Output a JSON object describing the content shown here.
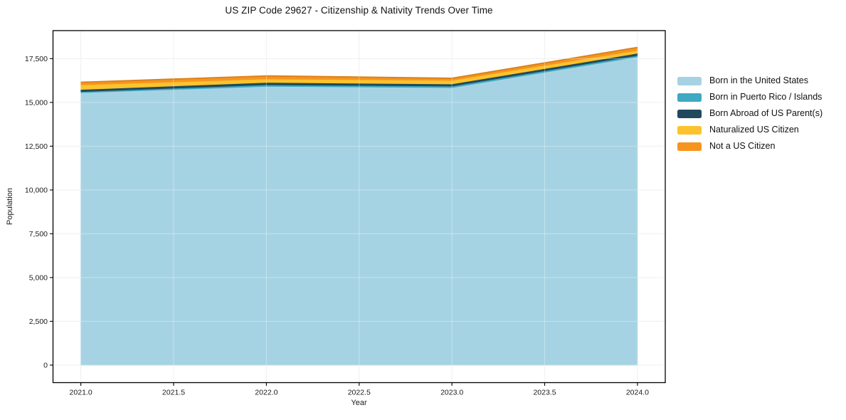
{
  "chart_data": {
    "type": "area",
    "stacked": true,
    "title": "US ZIP Code 29627 - Citizenship & Nativity Trends Over Time",
    "xlabel": "Year",
    "ylabel": "Population",
    "x": [
      2021,
      2022,
      2023,
      2024
    ],
    "series": [
      {
        "name": "Born in the United States",
        "color": "#a6d3e3",
        "values": [
          15560,
          15920,
          15850,
          17600
        ]
      },
      {
        "name": "Born in Puerto Rico / Islands",
        "color": "#3fa8c2",
        "values": [
          60,
          90,
          85,
          85
        ]
      },
      {
        "name": "Born Abroad of US Parent(s)",
        "color": "#20495c",
        "values": [
          120,
          135,
          120,
          125
        ]
      },
      {
        "name": "Naturalized US Citizen",
        "color": "#fcc32d",
        "values": [
          265,
          195,
          205,
          165
        ]
      },
      {
        "name": "Not a US Citizen",
        "color": "#f7941f",
        "values": [
          145,
          175,
          120,
          165
        ]
      }
    ],
    "xlim": [
      2020.85,
      2024.15
    ],
    "ylim": [
      -1000,
      19100
    ],
    "xticks": {
      "values": [
        2021.0,
        2021.5,
        2022.0,
        2022.5,
        2023.0,
        2023.5,
        2024.0
      ],
      "labels": [
        "2021.0",
        "2021.5",
        "2022.0",
        "2022.5",
        "2023.0",
        "2023.5",
        "2024.0"
      ]
    },
    "yticks": {
      "values": [
        0,
        2500,
        5000,
        7500,
        10000,
        12500,
        15000,
        17500
      ],
      "labels": [
        "0",
        "2,500",
        "5,000",
        "7,500",
        "10,000",
        "12,500",
        "15,000",
        "17,500"
      ]
    },
    "grid": true,
    "legend_position": "right"
  }
}
